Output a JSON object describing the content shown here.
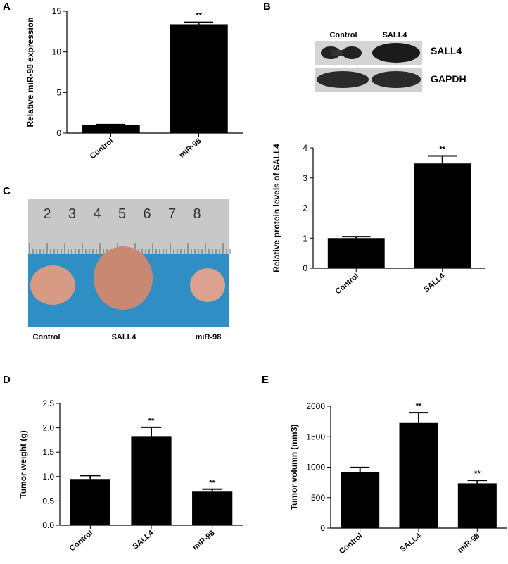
{
  "panel_labels": [
    "A",
    "B",
    "C",
    "D",
    "E"
  ],
  "blot": {
    "columns": [
      "Control",
      "SALL4"
    ],
    "rows": [
      "SALL4",
      "GAPDH"
    ]
  },
  "photo": {
    "ruler_labels": [
      "2",
      "3",
      "4",
      "5",
      "6",
      "7",
      "8"
    ],
    "groups": [
      "Control",
      "SALL4",
      "miR-98"
    ]
  },
  "chart_data": [
    {
      "type": "bar",
      "y_label": "Relative miR-98 expression",
      "categories": [
        "Control",
        "miR-98"
      ],
      "values": [
        1.0,
        13.4
      ],
      "errors": [
        0.05,
        0.25
      ],
      "color": "#000000",
      "ylim": [
        0,
        15
      ],
      "yticks": [
        0,
        5,
        10,
        15
      ],
      "annotations": [
        {
          "category": "miR-98",
          "text": "**"
        }
      ]
    },
    {
      "type": "bar",
      "y_label": "Relative protein levels of SALL4",
      "categories": [
        "Control",
        "SALL4"
      ],
      "values": [
        1.0,
        3.48
      ],
      "errors": [
        0.05,
        0.25
      ],
      "color": "#000000",
      "ylim": [
        0,
        4
      ],
      "yticks": [
        0,
        1,
        2,
        3,
        4
      ],
      "annotations": [
        {
          "category": "SALL4",
          "text": "**"
        }
      ]
    },
    {
      "type": "bar",
      "y_label": "Tumor weight (g)",
      "categories": [
        "Control",
        "SALL4",
        "miR-98"
      ],
      "values": [
        0.95,
        1.83,
        0.69
      ],
      "errors": [
        0.07,
        0.18,
        0.05
      ],
      "color": "#000000",
      "ylim": [
        0,
        2.5
      ],
      "yticks": [
        {
          "value": 0,
          "label": "0.0"
        },
        0.5,
        {
          "value": 1,
          "label": "1.0"
        },
        1.5,
        {
          "value": 2,
          "label": "2.0"
        },
        2.5
      ],
      "annotations": [
        {
          "category": "SALL4",
          "text": "**"
        },
        {
          "category": "miR-98",
          "text": "**"
        }
      ]
    },
    {
      "type": "bar",
      "y_label": "Tumor volumn (mm3)",
      "categories": [
        "Control",
        "SALL4",
        "miR-98"
      ],
      "values": [
        925,
        1725,
        735
      ],
      "errors": [
        70,
        170,
        50
      ],
      "color": "#000000",
      "ylim": [
        0,
        2000
      ],
      "yticks": [
        0,
        500,
        1000,
        1500,
        2000
      ],
      "annotations": [
        {
          "category": "SALL4",
          "text": "**"
        },
        {
          "category": "miR-98",
          "text": "**"
        }
      ]
    }
  ]
}
